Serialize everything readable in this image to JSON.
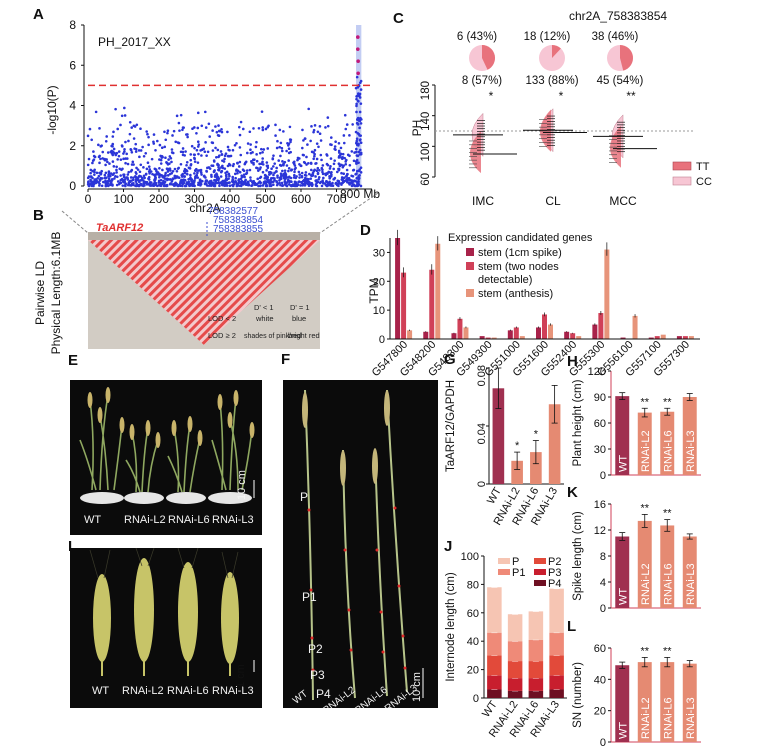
{
  "panel_letters": {
    "a": "A",
    "b": "B",
    "c": "C",
    "d": "D",
    "e": "E",
    "f": "F",
    "g": "G",
    "h": "H",
    "i": "I",
    "j": "J",
    "k": "K",
    "l": "L"
  },
  "colors": {
    "manhattan": "#2b35d8",
    "threshold": "#e03030",
    "highlight": "#aab8ee",
    "wt": "#a03050",
    "rnai": "#e58a72",
    "tt": "#e8727c",
    "cc": "#f7c6d4",
    "ld_red": "#e02020",
    "d1": "#a8224a",
    "d2": "#d04058",
    "d3": "#e7947a"
  },
  "panelA": {
    "title": "PH_2017_XX",
    "ylabel": "-log10(P)",
    "xlabel": "chr2A",
    "x_unit": "800 Mb",
    "chart_data": {
      "type": "scatter",
      "title": "PH_2017_XX",
      "xlabel": "chr2A (Mb)",
      "ylabel": "-log10(P)",
      "xlim": [
        0,
        800
      ],
      "ylim": [
        0,
        8
      ],
      "xticks": [
        0,
        100,
        200,
        300,
        400,
        500,
        600,
        700
      ],
      "yticks": [
        0,
        2,
        4,
        6,
        8
      ],
      "threshold": 5.0,
      "highlight_region": [
        755,
        770
      ],
      "peak_points": [
        {
          "x": 760,
          "y": 7.4
        },
        {
          "x": 760,
          "y": 6.8
        },
        {
          "x": 761,
          "y": 6.2
        },
        {
          "x": 761,
          "y": 5.6
        }
      ]
    }
  },
  "panelB": {
    "gene": "TaARF12",
    "snps": [
      "758382577",
      "758383854",
      "758383855"
    ],
    "ylabel1": "Pairwise LD",
    "ylabel2": "Physical Length:6.1MB",
    "legend": {
      "col1": "D' < 1",
      "col2": "D' = 1",
      "row1": "LOD < 2",
      "row2": "LOD ≥ 2",
      "c11": "white",
      "c12": "blue",
      "c21": "shades of pink/red",
      "c22": "bright red"
    }
  },
  "panelC": {
    "chart_data": {
      "type": "scatter",
      "title": "chr2A_758383854",
      "ylabel": "PH",
      "ylim": [
        60,
        180
      ],
      "yticks": [
        60,
        100,
        140,
        180
      ],
      "groups": [
        "IMC",
        "CL",
        "MCC"
      ],
      "significance": [
        "*",
        "*",
        "**"
      ],
      "pies": [
        {
          "tt": "6 (43%)",
          "cc": "8 (57%)",
          "tt_frac": 0.43
        },
        {
          "tt": "18 (12%)",
          "cc": "133 (88%)",
          "tt_frac": 0.12
        },
        {
          "tt": "38 (46%)",
          "cc": "45 (54%)",
          "tt_frac": 0.46
        }
      ],
      "means": {
        "TT": [
          90,
          118,
          97
        ],
        "CC": [
          115,
          121,
          113
        ]
      },
      "legend": [
        "TT",
        "CC"
      ]
    }
  },
  "panelD": {
    "chart_data": {
      "type": "bar",
      "title": "Expression candidated genes",
      "ylabel": "TPM",
      "ylim": [
        0,
        35
      ],
      "yticks": [
        0,
        10,
        20,
        30
      ],
      "categories": [
        "G547800",
        "G548200",
        "G548300",
        "G549300",
        "G551000",
        "G551600",
        "G552400",
        "G555300",
        "G556100",
        "G557100",
        "G557300"
      ],
      "series": [
        {
          "name": "stem (1cm spike)",
          "values": [
            35,
            2.5,
            2,
            1,
            3,
            4,
            2.5,
            5,
            0.5,
            0.5,
            1
          ]
        },
        {
          "name": "stem (two nodes detectable)",
          "values": [
            23,
            24,
            7,
            0.5,
            4,
            8.5,
            2,
            9,
            0,
            1,
            1
          ]
        },
        {
          "name": "stem (anthesis)",
          "values": [
            3,
            33,
            4,
            0.5,
            1,
            5,
            1,
            31,
            8,
            1.5,
            1
          ]
        }
      ]
    },
    "legend_title": "Expression candidated genes",
    "legend": [
      "stem (1cm spike)",
      "stem (two nodes",
      "detectable)",
      "stem (anthesis)"
    ]
  },
  "panelE": {
    "labels": [
      "WT",
      "RNAi-L2",
      "RNAi-L6",
      "RNAi-L3"
    ],
    "scale": "10 cm"
  },
  "panelF": {
    "internodes": [
      "P",
      "P1",
      "P2",
      "P3",
      "P4"
    ],
    "labels": [
      "WT",
      "RNAi-L2",
      "RNAi-L6",
      "RNAi-L3"
    ],
    "scale": "10 cm"
  },
  "panelI": {
    "labels": [
      "WT",
      "RNAi-L2",
      "RNAi-L6",
      "RNAi-L3"
    ],
    "scale": "1 cm"
  },
  "panelG": {
    "chart_data": {
      "type": "bar",
      "ylabel": "TaARF12/GAPDH",
      "ylim": [
        0,
        0.08
      ],
      "yticks": [
        "0",
        "0.04",
        "0.08"
      ],
      "categories": [
        "WT",
        "RNAi-L2",
        "RNAi-L6",
        "RNAi-L3"
      ],
      "values": [
        0.066,
        0.016,
        0.022,
        0.055
      ],
      "errors": [
        0.014,
        0.006,
        0.008,
        0.013
      ],
      "significance": [
        "",
        "*",
        "*",
        ""
      ]
    }
  },
  "panelH": {
    "chart_data": {
      "type": "bar",
      "ylabel": "Plant height (cm)",
      "ylim": [
        0,
        120
      ],
      "yticks": [
        "0",
        "30",
        "60",
        "90",
        "120"
      ],
      "categories": [
        "WT",
        "RNAi-L2",
        "RNAi-L6",
        "RNAi-L3"
      ],
      "values": [
        91,
        72,
        73,
        90
      ],
      "errors": [
        4,
        5,
        4,
        4
      ],
      "significance": [
        "",
        "**",
        "**",
        ""
      ]
    }
  },
  "panelK": {
    "chart_data": {
      "type": "bar",
      "ylabel": "Spike length (cm)",
      "ylim": [
        0,
        16
      ],
      "yticks": [
        "0",
        "4",
        "8",
        "12",
        "16"
      ],
      "categories": [
        "WT",
        "RNAi-L2",
        "RNAi-L6",
        "RNAi-L3"
      ],
      "values": [
        11.0,
        13.4,
        12.7,
        11.0
      ],
      "errors": [
        0.6,
        1.0,
        0.9,
        0.4
      ],
      "significance": [
        "",
        "**",
        "**",
        ""
      ]
    }
  },
  "panelL": {
    "chart_data": {
      "type": "bar",
      "ylabel": "SN (number)",
      "ylim": [
        0,
        60
      ],
      "yticks": [
        "0",
        "20",
        "40",
        "60"
      ],
      "categories": [
        "WT",
        "RNAi-L2",
        "RNAi-L6",
        "RNAi-L3"
      ],
      "values": [
        49,
        51,
        51,
        50
      ],
      "errors": [
        2,
        3,
        3,
        2
      ],
      "significance": [
        "",
        "**",
        "**",
        ""
      ]
    }
  },
  "panelJ": {
    "chart_data": {
      "type": "bar",
      "ylabel": "Internode length (cm)",
      "ylim": [
        0,
        100
      ],
      "yticks": [
        "0",
        "20",
        "40",
        "60",
        "80",
        "100"
      ],
      "categories": [
        "WT",
        "RNAi-L2",
        "RNAi-L6",
        "RNAi-L3"
      ],
      "series": [
        {
          "name": "P4",
          "values": [
            6,
            5,
            5,
            6
          ]
        },
        {
          "name": "P3",
          "values": [
            10,
            9,
            9,
            10
          ]
        },
        {
          "name": "P2",
          "values": [
            14,
            12,
            12,
            14
          ]
        },
        {
          "name": "P1",
          "values": [
            16,
            14,
            15,
            16
          ]
        },
        {
          "name": "P",
          "values": [
            32,
            19,
            20,
            31
          ]
        }
      ],
      "totals": [
        78,
        59,
        61,
        77
      ],
      "legend": [
        "P",
        "P1",
        "P2",
        "P3",
        "P4"
      ]
    }
  }
}
